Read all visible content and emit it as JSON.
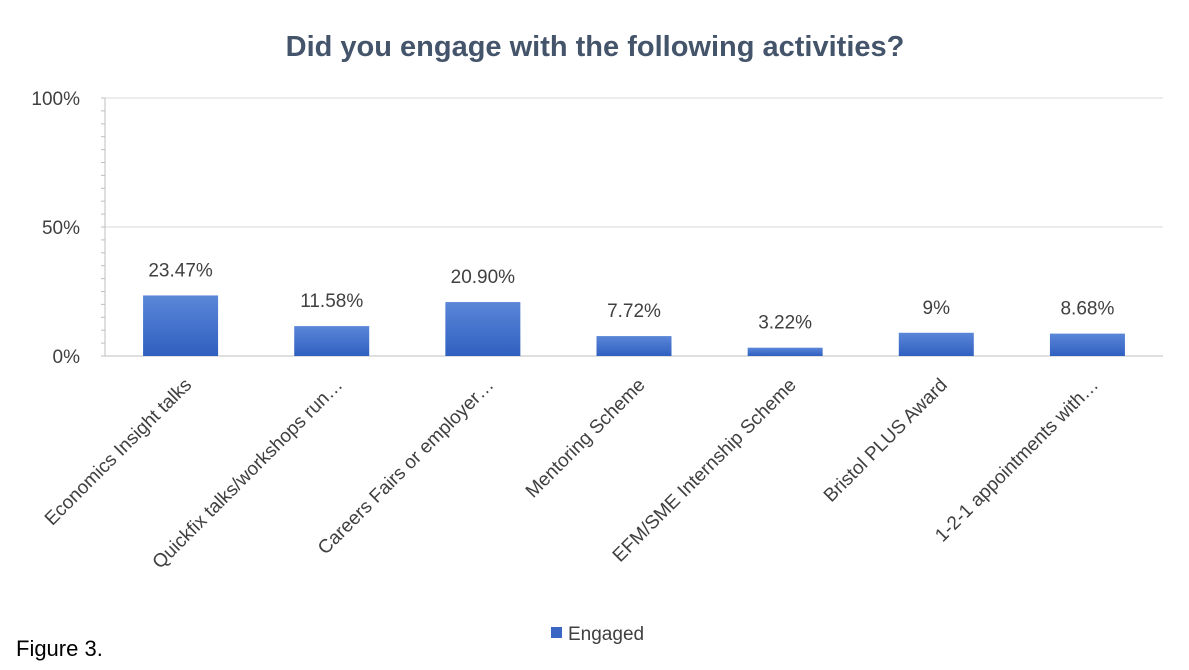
{
  "chart_data": {
    "type": "bar",
    "title": "Did you engage with the following activities?",
    "categories": [
      "Economics Insight talks",
      "Quickfix talks/workshops run…",
      "Careers Fairs or employer…",
      "Mentoring Scheme",
      "EFM/SME Internship Scheme",
      "Bristol PLUS Award",
      "1-2-1 appointments with…"
    ],
    "series": [
      {
        "name": "Engaged",
        "values": [
          23.47,
          11.58,
          20.9,
          7.72,
          3.22,
          9,
          8.68
        ],
        "labels": [
          "23.47%",
          "11.58%",
          "20.90%",
          "7.72%",
          "3.22%",
          "9%",
          "8.68%"
        ]
      }
    ],
    "yticks": [
      0,
      50,
      100
    ],
    "ytick_labels": [
      "0%",
      "50%",
      "100%"
    ],
    "ylim": [
      0,
      100
    ],
    "xlabel": "",
    "ylabel": "",
    "grid": true,
    "legend": "bottom-center",
    "colors": {
      "bar_top": "#5b87d8",
      "bar_bottom": "#2f5fc0",
      "title": "#44546a",
      "text": "#404040",
      "grid": "#d9d9d9",
      "axis": "#bfbfbf"
    }
  },
  "caption": "Figure 3."
}
